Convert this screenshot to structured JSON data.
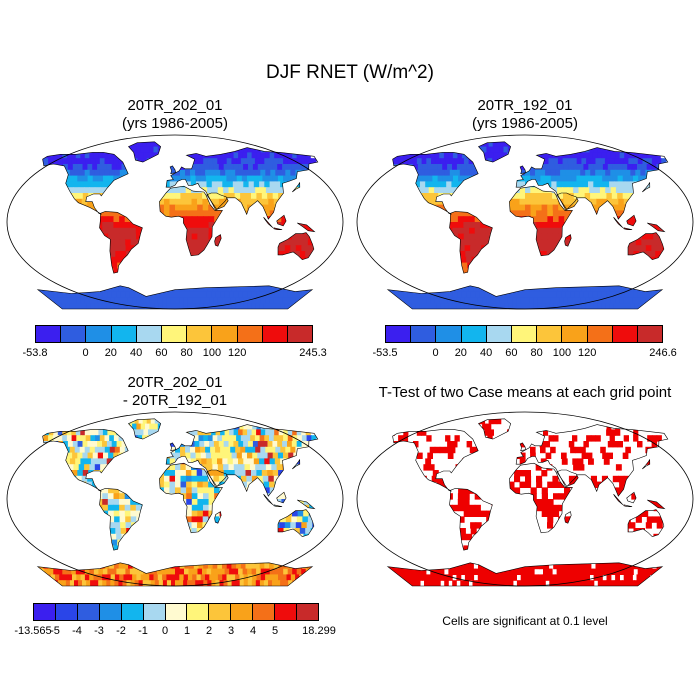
{
  "title": "DJF RNET (W/m^2)",
  "chart_data": [
    {
      "type": "heatmap",
      "title_line1": "20TR_202_01",
      "title_line2": "(yrs 1986-2005)",
      "projection": "robinson",
      "colorbar": {
        "min_label": "-53.8",
        "max_label": "245.3",
        "levels": [
          "0",
          "20",
          "40",
          "60",
          "80",
          "100",
          "120"
        ],
        "colors": [
          "#3b1fef",
          "#2f5de0",
          "#1f8fe6",
          "#12b5ee",
          "#a8d8f0",
          "#fff57a",
          "#fcc53a",
          "#f9a21a",
          "#f47018",
          "#ef0c0c",
          "#c82a2a"
        ]
      }
    },
    {
      "type": "heatmap",
      "title_line1": "20TR_192_01",
      "title_line2": "(yrs 1986-2005)",
      "projection": "robinson",
      "colorbar": {
        "min_label": "-53.5",
        "max_label": "246.6",
        "levels": [
          "0",
          "20",
          "40",
          "60",
          "80",
          "100",
          "120"
        ],
        "colors": [
          "#3b1fef",
          "#2f5de0",
          "#1f8fe6",
          "#12b5ee",
          "#a8d8f0",
          "#fff57a",
          "#fcc53a",
          "#f9a21a",
          "#f47018",
          "#ef0c0c",
          "#c82a2a"
        ]
      }
    },
    {
      "type": "heatmap",
      "title_line1": "20TR_202_01",
      "title_line2": "- 20TR_192_01",
      "projection": "robinson",
      "colorbar": {
        "min_label": "-13.565",
        "max_label": "18.299",
        "levels": [
          "-5",
          "-4",
          "-3",
          "-2",
          "-1",
          "0",
          "1",
          "2",
          "3",
          "4",
          "5"
        ],
        "colors": [
          "#3b1fef",
          "#2a45e8",
          "#2f5de0",
          "#1f8fe6",
          "#12b5ee",
          "#a8d8f0",
          "#fffad0",
          "#fff57a",
          "#fcc53a",
          "#f9a21a",
          "#f47018",
          "#ef0c0c",
          "#c82a2a"
        ]
      }
    },
    {
      "type": "heatmap",
      "title_line1": "T-Test of two Case means at each grid point",
      "projection": "robinson",
      "note": "Cells are significant at 0.1 level",
      "significant_color": "#ee0000"
    }
  ],
  "colors": {
    "ocean": "#ffffff",
    "coast": "#000000"
  }
}
